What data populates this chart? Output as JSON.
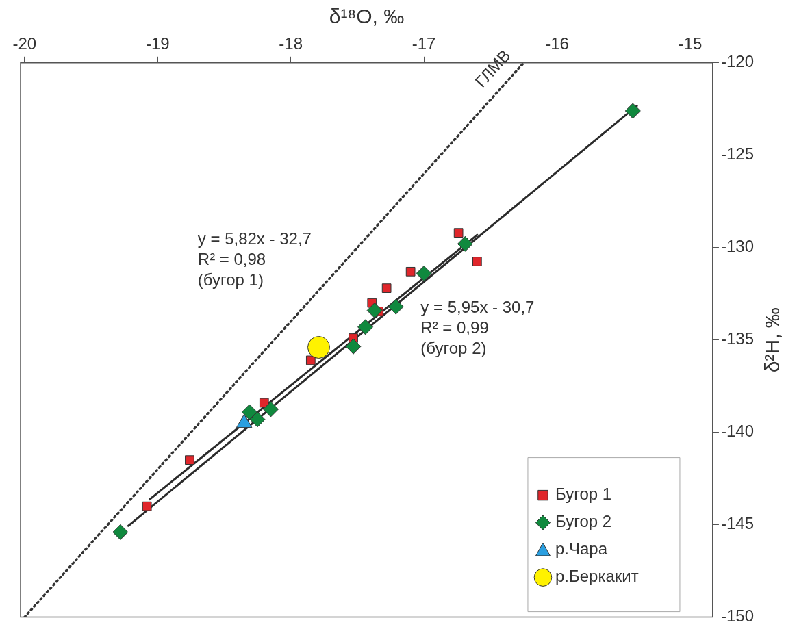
{
  "chart_data": {
    "type": "scatter",
    "xlabel": "δ¹⁸O, ‰",
    "ylabel": "δ²H, ‰",
    "xlim": [
      -20.03,
      -14.83
    ],
    "xticks": [
      -20,
      -19,
      -18,
      -17,
      -16,
      -15
    ],
    "ylim": [
      -150,
      -120
    ],
    "yticks": [
      -120,
      -125,
      -130,
      -135,
      -140,
      -145,
      -150
    ],
    "grid": false,
    "legend": "bottom right",
    "series": [
      {
        "type": "line",
        "color": "#333333",
        "line_style": "dotted",
        "marker": "none",
        "x": [
          -20,
          -16.25
        ],
        "values": [
          -150,
          -120
        ]
      },
      {
        "type": "line",
        "color": "#2b2b2b",
        "line_style": "solid",
        "marker": "none",
        "x": [
          -19.06,
          -16.6
        ],
        "values": [
          -143.63,
          -129.31
        ]
      },
      {
        "type": "line",
        "color": "#2b2b2b",
        "line_style": "solid",
        "marker": "none",
        "x": [
          -19.22,
          -15.4
        ],
        "values": [
          -145.06,
          -122.33
        ]
      },
      {
        "name": "Бугор 1",
        "color": "#e0262b",
        "marker": "square",
        "x": [
          -19.08,
          -18.76,
          -18.2,
          -17.85,
          -17.53,
          -17.39,
          -17.34,
          -17.28,
          -17.1,
          -16.74,
          -16.6
        ],
        "values": [
          -144.0,
          -141.5,
          -138.4,
          -136.1,
          -134.9,
          -133.0,
          -133.45,
          -132.2,
          -131.3,
          -129.2,
          -130.75
        ]
      },
      {
        "name": "Бугор 2",
        "color": "#10893e",
        "marker": "diamond",
        "x": [
          -19.28,
          -18.31,
          -18.25,
          -18.15,
          -17.53,
          -17.44,
          -17.37,
          -17.21,
          -17.0,
          -16.69,
          -15.43
        ],
        "values": [
          -145.4,
          -138.9,
          -139.3,
          -138.75,
          -135.35,
          -134.3,
          -133.4,
          -133.2,
          -131.4,
          -129.8,
          -122.6
        ]
      },
      {
        "name": "р.Чара",
        "color": "#2a9fe0",
        "marker": "triangle",
        "x": [
          -18.35
        ],
        "values": [
          -139.5
        ]
      },
      {
        "name": "р.Беркакит",
        "color": "#fff200",
        "marker": "circle",
        "x": [
          -17.79
        ],
        "values": [
          -135.4
        ]
      }
    ],
    "annotations": [
      "ГЛМВ",
      "y = 5,82x - 32,7\nR² = 0,98\n(бугор 1)",
      "y = 5,95x - 30,7\nR² = 0,99\n(бугор 2)"
    ]
  }
}
